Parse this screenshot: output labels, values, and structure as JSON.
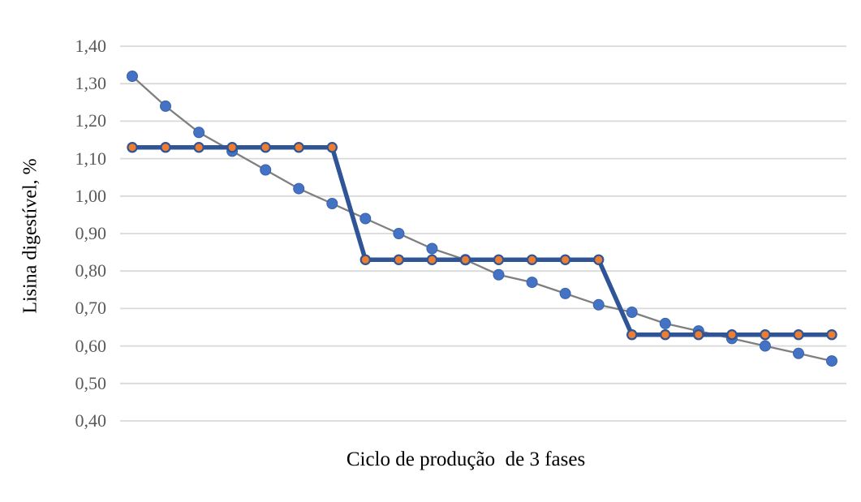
{
  "chart_data": {
    "type": "line",
    "title": "",
    "xlabel": "Ciclo de produção  de 3 fases",
    "ylabel": "Lisina digestível, %",
    "y_axis": {
      "min": 0.4,
      "max": 1.4,
      "tick_step": 0.1,
      "decimal_separator": ",",
      "tick_labels": [
        "1,40",
        "1,30",
        "1,20",
        "1,10",
        "1,00",
        "0,90",
        "0,80",
        "0,70",
        "0,60",
        "0,50",
        "0,40"
      ]
    },
    "x_axis": {
      "tick_labels_shown": false,
      "n_points": 22
    },
    "grid": {
      "horizontal": true,
      "vertical": false,
      "color": "#D9D9D9"
    },
    "legend_position": "none",
    "background_color": "#FFFFFF",
    "text_color_ticks": "#595959",
    "text_color_titles": "#000000",
    "series": [
      {
        "id": "requirement-curve",
        "style": "smooth-declining-line-with-round-markers",
        "line_color": "#7F7F7F",
        "line_width": 2.3,
        "marker": "circle",
        "marker_color": "#4472C4",
        "marker_edge_color": "#3A62A8",
        "marker_edge_width": 1,
        "marker_radius": 6.5,
        "values": [
          1.32,
          1.24,
          1.17,
          1.12,
          1.07,
          1.02,
          0.98,
          0.94,
          0.9,
          0.86,
          0.83,
          0.79,
          0.77,
          0.74,
          0.71,
          0.69,
          0.66,
          0.64,
          0.62,
          0.6,
          0.58,
          0.56
        ]
      },
      {
        "id": "phase-step-line",
        "style": "thick-step-line-with-round-markers",
        "line_color": "#2F5597",
        "line_width": 5.5,
        "marker": "circle",
        "marker_color": "#ED7D31",
        "marker_edge_color": "#2F5597",
        "marker_edge_width": 2.2,
        "marker_radius": 5.6,
        "values": [
          1.13,
          1.13,
          1.13,
          1.13,
          1.13,
          1.13,
          1.13,
          0.83,
          0.83,
          0.83,
          0.83,
          0.83,
          0.83,
          0.83,
          0.83,
          0.63,
          0.63,
          0.63,
          0.63,
          0.63,
          0.63,
          0.63
        ],
        "phases": [
          {
            "level": 1.13,
            "points": 7
          },
          {
            "level": 0.83,
            "points": 8
          },
          {
            "level": 0.63,
            "points": 7
          }
        ]
      }
    ]
  }
}
